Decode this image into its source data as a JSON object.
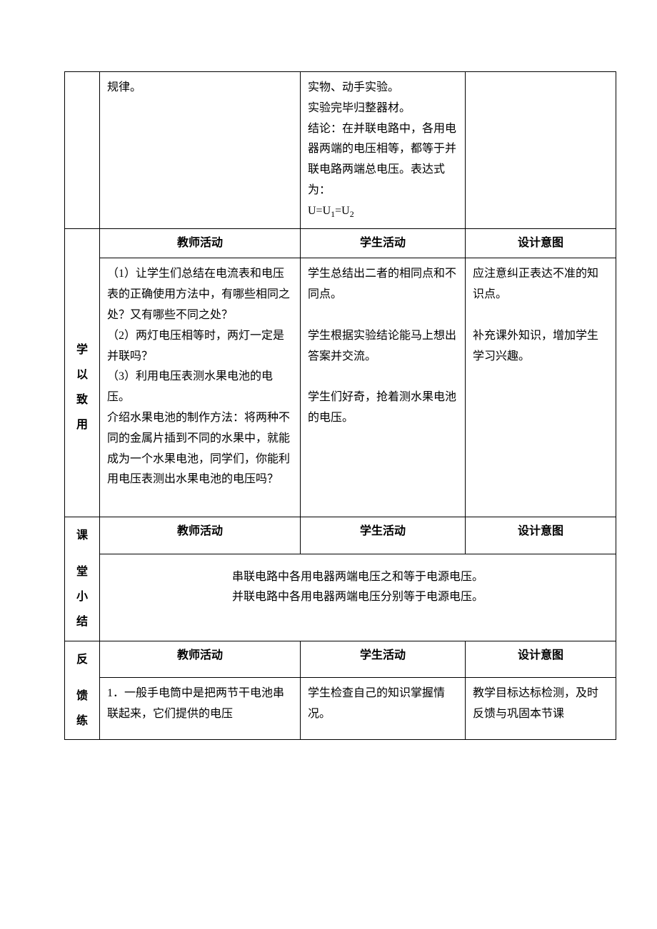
{
  "row1": {
    "teacher": "规律。",
    "student_l1": "实物、动手实验。",
    "student_l2": "实验完毕归整器材。",
    "student_l3": "结论：在并联电路中，各用电器两端的电压相等，都等于并联电路两端总电压。表达式为：",
    "formula_prefix": "U=U",
    "formula_eq": "=U",
    "formula_sub1": "1",
    "formula_sub2": "2"
  },
  "headers": {
    "teacher": "教师活动",
    "student": "学生活动",
    "design": "设计意图"
  },
  "apply": {
    "label_l1": "学",
    "label_l2": "以",
    "label_l3": "致",
    "label_l4": "用",
    "teacher_p1": "（1）让学生们总结在电流表和电压表的正确使用方法中，有哪些相同之处？又有哪些不同之处？",
    "teacher_p2": "（2）两灯电压相等时，两灯一定是并联吗？",
    "teacher_p3": "（3）利用电压表测水果电池的电压。",
    "teacher_p4": "介绍水果电池的制作方法：将两种不同的金属片插到不同的水果中，就能成为一个水果电池，同学们，你能利用电压表测出水果电池的电压吗？",
    "student_p1": "学生总结出二者的相同点和不同点。",
    "student_p2": "学生根据实验结论能马上想出答案并交流。",
    "student_p3": "学生们好奇，抢着测水果电池的电压。",
    "design_p1": "应注意纠正表达不准的知识点。",
    "design_p2": "补充课外知识，增加学生学习兴趣。"
  },
  "summary": {
    "label_l1": "课",
    "label_l2": "堂",
    "label_l3": "小",
    "label_l4": "结",
    "line1": "串联电路中各用电器两端电压之和等于电源电压。",
    "line2": "并联电路中各用电器两端电压分别等于电源电压。"
  },
  "feedback": {
    "label_l1": "反",
    "label_l2": "馈",
    "label_l3": "练",
    "teacher": "1．一般手电筒中是把两节干电池串联起来，它们提供的电压",
    "student": "学生检查自己的知识掌握情况。",
    "design": "教学目标达标检测，及时反馈与巩固本节课"
  }
}
